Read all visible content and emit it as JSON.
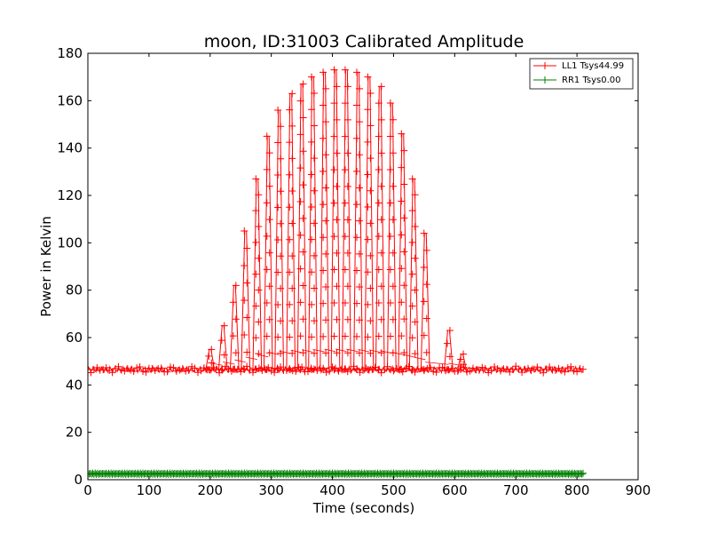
{
  "chart_data": {
    "type": "line",
    "title": "moon, ID:31003 Calibrated Amplitude",
    "xlabel": "Time (seconds)",
    "ylabel": "Power in Kelvin",
    "xlim": [
      0,
      900
    ],
    "ylim": [
      0,
      180
    ],
    "xticks": [
      0,
      100,
      200,
      300,
      400,
      500,
      600,
      700,
      800,
      900
    ],
    "yticks": [
      0,
      20,
      40,
      60,
      80,
      100,
      120,
      140,
      160,
      180
    ],
    "xtick_labels": [
      "0",
      "100",
      "200",
      "300",
      "400",
      "500",
      "600",
      "700",
      "800",
      "900"
    ],
    "ytick_labels": [
      "0",
      "20",
      "40",
      "60",
      "80",
      "100",
      "120",
      "140",
      "160",
      "180"
    ],
    "grid": false,
    "legend_position": "top-right",
    "marker": "+",
    "series": [
      {
        "name": "LL1 Tsys44.99",
        "color": "#ff0000",
        "baseline": 46.5,
        "x_range": [
          0,
          810
        ],
        "sweep_peaks": [
          {
            "x": 200,
            "y": 55
          },
          {
            "x": 221,
            "y": 65
          },
          {
            "x": 240,
            "y": 82
          },
          {
            "x": 258,
            "y": 105
          },
          {
            "x": 277,
            "y": 127
          },
          {
            "x": 295,
            "y": 145
          },
          {
            "x": 313,
            "y": 156
          },
          {
            "x": 332,
            "y": 163
          },
          {
            "x": 350,
            "y": 167
          },
          {
            "x": 368,
            "y": 170
          },
          {
            "x": 387,
            "y": 172
          },
          {
            "x": 405,
            "y": 173
          },
          {
            "x": 423,
            "y": 173
          },
          {
            "x": 442,
            "y": 172
          },
          {
            "x": 460,
            "y": 170
          },
          {
            "x": 478,
            "y": 166
          },
          {
            "x": 497,
            "y": 159
          },
          {
            "x": 515,
            "y": 146
          },
          {
            "x": 533,
            "y": 127
          },
          {
            "x": 552,
            "y": 104
          },
          {
            "x": 590,
            "y": 63
          },
          {
            "x": 612,
            "y": 53
          }
        ]
      },
      {
        "name": "RR1 Tsys0.00",
        "color": "#008000",
        "baseline": 2.5,
        "x_range": [
          0,
          810
        ]
      }
    ]
  }
}
